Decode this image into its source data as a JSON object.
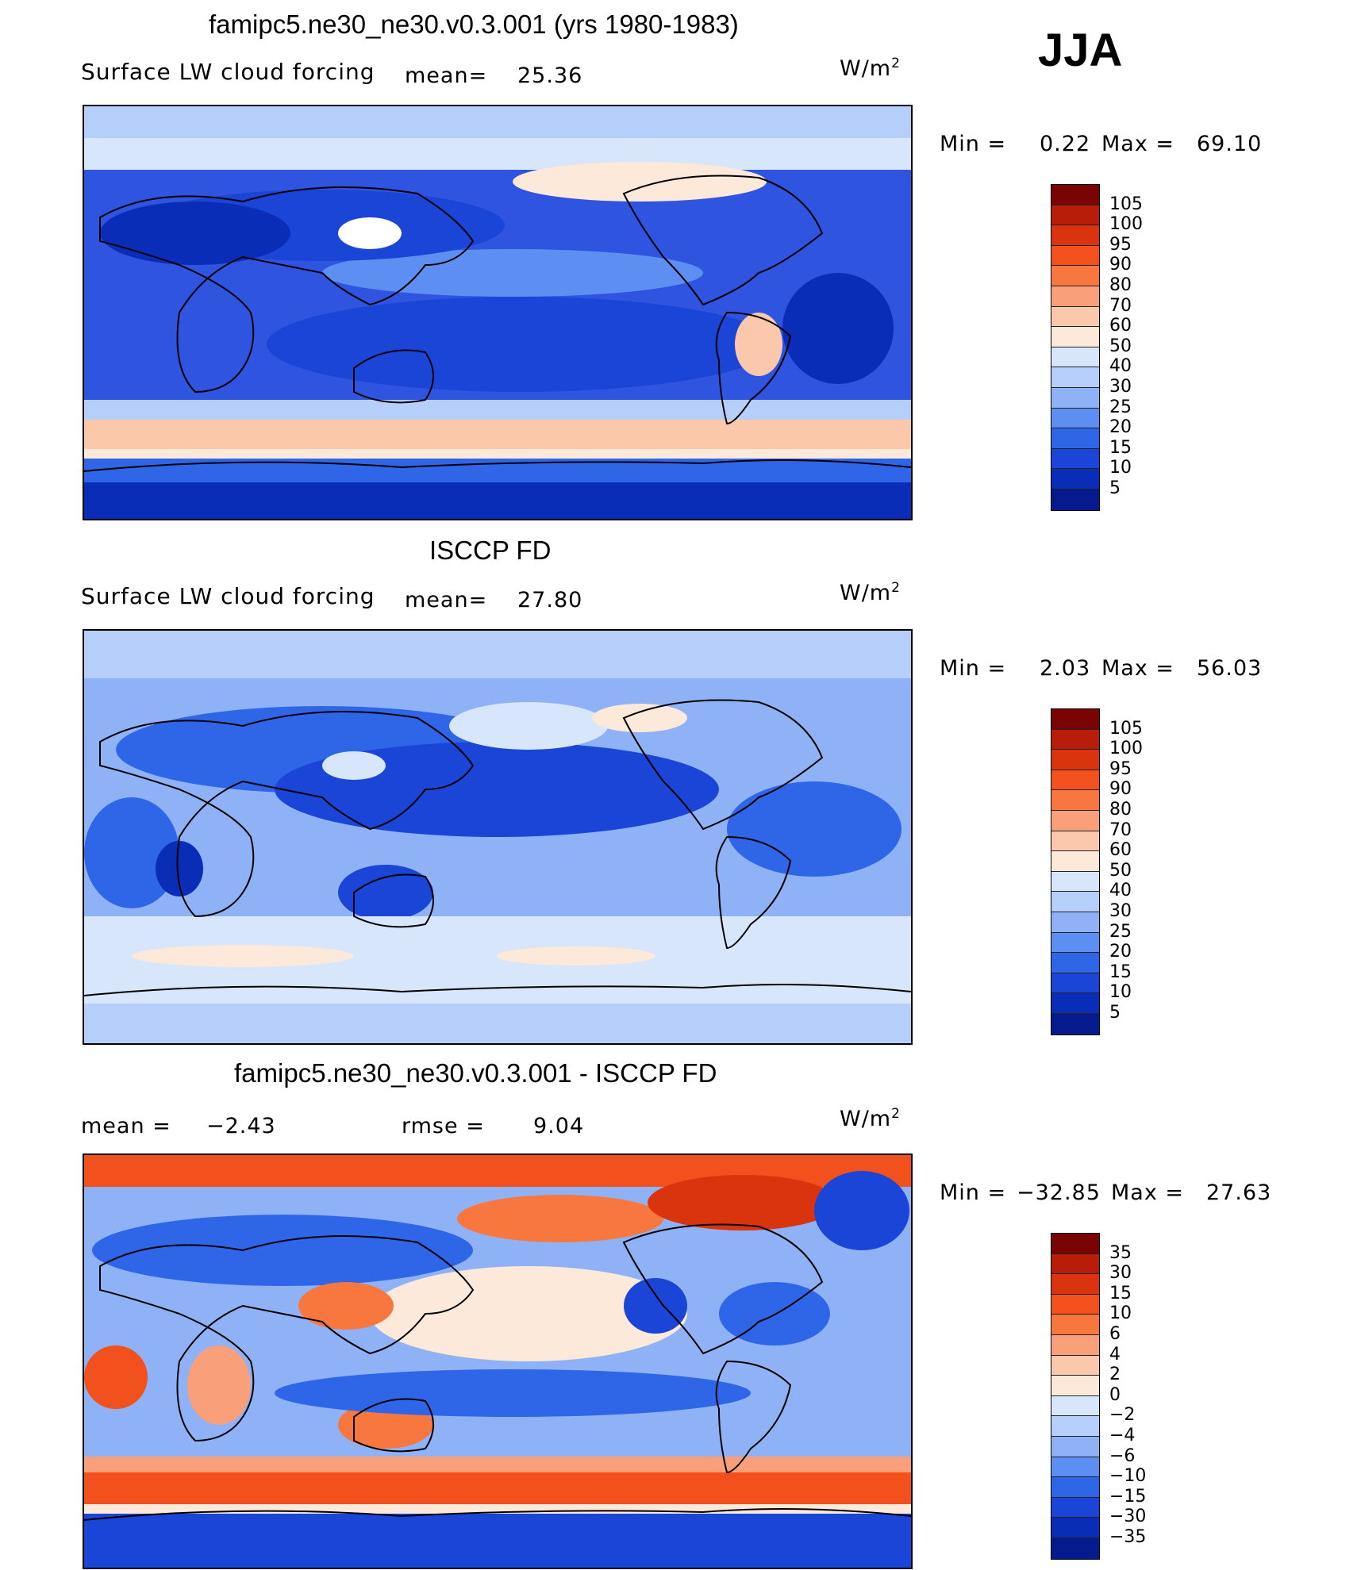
{
  "season": "JJA",
  "panels": [
    {
      "title": "famipc5.ne30_ne30.v0.3.001 (yrs 1980-1983)",
      "variable": "Surface LW cloud forcing",
      "mean_label": "mean=",
      "mean_value": "25.36",
      "units_base": "W/m",
      "units_exp": "2",
      "min_label": "Min =",
      "min_value": "0.22",
      "max_label": "Max =",
      "max_value": "69.10",
      "ticks": [
        "105",
        "100",
        "95",
        "90",
        "80",
        "70",
        "60",
        "50",
        "40",
        "30",
        "25",
        "20",
        "15",
        "10",
        "5"
      ]
    },
    {
      "title": "ISCCP FD",
      "variable": "Surface LW cloud forcing",
      "mean_label": "mean=",
      "mean_value": "27.80",
      "units_base": "W/m",
      "units_exp": "2",
      "min_label": "Min =",
      "min_value": "2.03",
      "max_label": "Max =",
      "max_value": "56.03",
      "ticks": [
        "105",
        "100",
        "95",
        "90",
        "80",
        "70",
        "60",
        "50",
        "40",
        "30",
        "25",
        "20",
        "15",
        "10",
        "5"
      ]
    },
    {
      "title": "famipc5.ne30_ne30.v0.3.001 - ISCCP FD",
      "mean_label": "mean =",
      "mean_value": "−2.43",
      "rmse_label": "rmse =",
      "rmse_value": "9.04",
      "units_base": "W/m",
      "units_exp": "2",
      "min_label": "Min =",
      "min_value": "−32.85",
      "max_label": "Max =",
      "max_value": "27.63",
      "ticks": [
        "35",
        "30",
        "15",
        "10",
        "6",
        "4",
        "2",
        "0",
        "−2",
        "−4",
        "−6",
        "−10",
        "−15",
        "−30",
        "−35"
      ]
    }
  ],
  "colorbar_colors": [
    "#7a0403",
    "#b81d0a",
    "#d9340d",
    "#f2501c",
    "#f7773f",
    "#f9a07a",
    "#fcc8ac",
    "#fde9da",
    "#d7e6fb",
    "#b6cffa",
    "#8fb2f7",
    "#5d8ef1",
    "#2f66e8",
    "#1a45d6",
    "#0a2db8",
    "#051a8c"
  ],
  "colors": {
    "ocean_mid": "#2f55e0",
    "land_outline": "#000000"
  }
}
